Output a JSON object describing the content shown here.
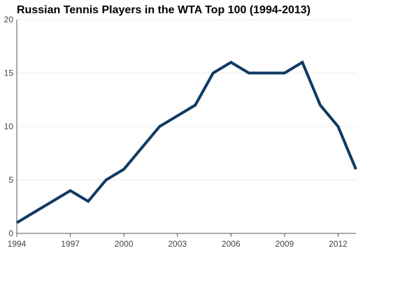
{
  "chart_data": {
    "type": "line",
    "title": "Russian Tennis Players in the WTA Top 100 (1994-2013)",
    "xlabel": "",
    "ylabel": "",
    "x": [
      1994,
      1995,
      1996,
      1997,
      1998,
      1999,
      2000,
      2001,
      2002,
      2003,
      2004,
      2005,
      2006,
      2007,
      2008,
      2009,
      2010,
      2011,
      2012,
      2013
    ],
    "series": [
      {
        "values": [
          1,
          2,
          3,
          4,
          3,
          5,
          6,
          8,
          10,
          11,
          12,
          15,
          16,
          15,
          15,
          15,
          16,
          12,
          10,
          6
        ],
        "color": "#0f3a63"
      }
    ],
    "xlim": [
      1994,
      2013
    ],
    "ylim": [
      0,
      20
    ],
    "xticks": [
      1994,
      1997,
      2000,
      2003,
      2006,
      2009,
      2012
    ],
    "yticks": [
      0,
      5,
      10,
      15,
      20
    ],
    "grid": true,
    "legend": "none",
    "colors": {
      "line": "#0f3a63",
      "grid": "#ececec",
      "axis": "#555555",
      "tick_text": "#444444"
    }
  }
}
